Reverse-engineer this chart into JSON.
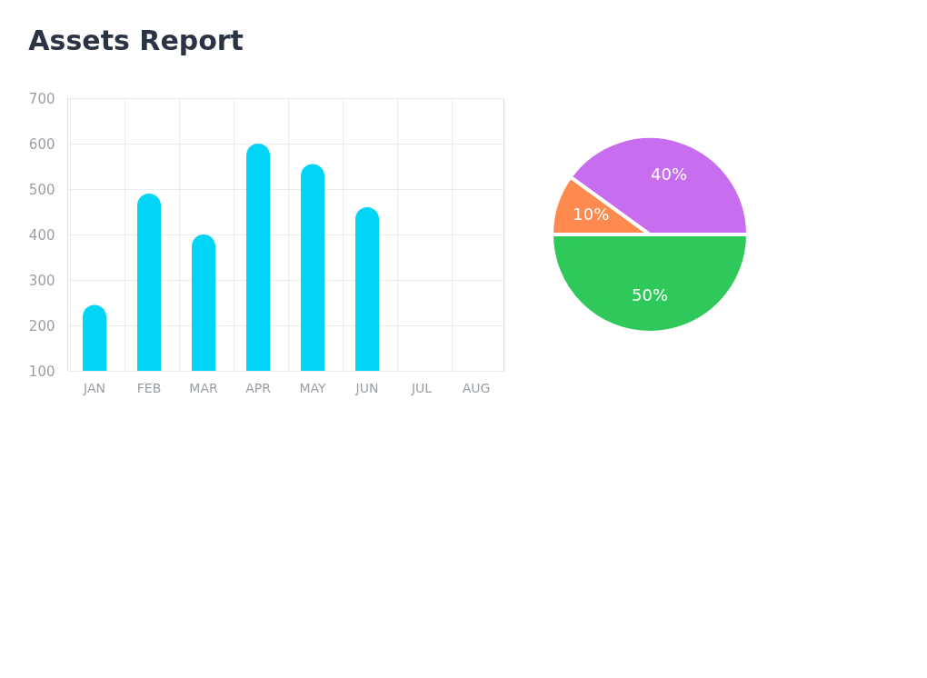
{
  "chart_data": [
    {
      "type": "bar",
      "title": "Assets Report",
      "categories": [
        "JAN",
        "FEB",
        "MAR",
        "APR",
        "MAY",
        "JUN",
        "JUL",
        "AUG"
      ],
      "values": [
        245,
        490,
        400,
        600,
        555,
        460,
        null,
        null
      ],
      "color": "#00d4f7",
      "ylim": [
        100,
        700
      ],
      "yticks": [
        100,
        200,
        300,
        400,
        500,
        600,
        700
      ],
      "grid": true
    },
    {
      "type": "pie",
      "categories": [
        null,
        null,
        null
      ],
      "values": [
        50,
        10,
        40
      ],
      "colors": [
        "#2ec95a",
        "#ff8a50",
        "#c86cf0"
      ],
      "value_labels": [
        "50%",
        "10%",
        "40%"
      ]
    }
  ]
}
